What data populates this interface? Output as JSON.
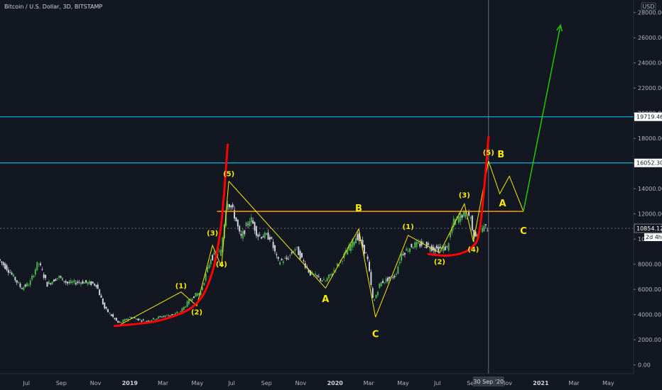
{
  "header": {
    "symbol": "Bitcoin / U.S. Dollar, 3D, BITSTAMP"
  },
  "currency_badge": "USD",
  "colors": {
    "background": "#131722",
    "up_candle": "#4caf50",
    "down_candle": "#d1d4dc",
    "wave_line": "#f5ea00",
    "cup_curve": "#ff0000",
    "resistance": "#00bcd4",
    "neckline": "#ff9800",
    "projection": "#1fc800"
  },
  "chart_data": {
    "type": "candlestick",
    "title": "Bitcoin / U.S. Dollar, 3D, BITSTAMP",
    "currency": "USD",
    "y_range": [
      -700,
      29000
    ],
    "x_range": [
      "2018-05-15",
      "2021-06-15"
    ],
    "price_ticks": [
      "28000.00",
      "26000.00",
      "24000.00",
      "22000.00",
      "20000.00",
      "18000.00",
      "16000.00",
      "14000.00",
      "12000.00",
      "10000.00",
      "8000.00",
      "6000.00",
      "4000.00",
      "2000.00",
      "0.00"
    ],
    "time_ticks": [
      "Jul",
      "Sep",
      "Nov",
      "2019",
      "Mar",
      "May",
      "Jul",
      "Sep",
      "Nov",
      "2020",
      "Mar",
      "May",
      "Jul",
      "Sep",
      "Nov",
      "2021",
      "Mar",
      "May"
    ],
    "cursor": {
      "date_label": "30 Sep '20",
      "price_label": "10854.12",
      "countdown_label": "2d 4h"
    },
    "price_series": [
      [
        "2018-05-15",
        8400
      ],
      [
        "2018-06-01",
        7600
      ],
      [
        "2018-06-25",
        6100
      ],
      [
        "2018-07-10",
        6500
      ],
      [
        "2018-07-25",
        8200
      ],
      [
        "2018-08-10",
        6400
      ],
      [
        "2018-08-30",
        7000
      ],
      [
        "2018-09-15",
        6500
      ],
      [
        "2018-10-10",
        6600
      ],
      [
        "2018-11-05",
        6400
      ],
      [
        "2018-11-20",
        4500
      ],
      [
        "2018-12-15",
        3300
      ],
      [
        "2019-01-05",
        3800
      ],
      [
        "2019-02-01",
        3450
      ],
      [
        "2019-03-01",
        3850
      ],
      [
        "2019-04-01",
        4100
      ],
      [
        "2019-04-25",
        5400
      ],
      [
        "2019-05-10",
        5800
      ],
      [
        "2019-05-28",
        8500
      ],
      [
        "2019-06-15",
        9000
      ],
      [
        "2019-06-26",
        13200
      ],
      [
        "2019-07-10",
        11800
      ],
      [
        "2019-07-20",
        10000
      ],
      [
        "2019-08-06",
        11700
      ],
      [
        "2019-08-20",
        10300
      ],
      [
        "2019-09-10",
        10200
      ],
      [
        "2019-09-24",
        8200
      ],
      [
        "2019-10-10",
        8400
      ],
      [
        "2019-10-26",
        9300
      ],
      [
        "2019-11-20",
        7300
      ],
      [
        "2019-12-17",
        6600
      ],
      [
        "2020-01-10",
        8000
      ],
      [
        "2020-02-12",
        10300
      ],
      [
        "2020-03-01",
        8600
      ],
      [
        "2020-03-12",
        4900
      ],
      [
        "2020-03-24",
        6500
      ],
      [
        "2020-04-20",
        7100
      ],
      [
        "2020-05-01",
        8800
      ],
      [
        "2020-05-20",
        9500
      ],
      [
        "2020-06-10",
        9600
      ],
      [
        "2020-07-01",
        9200
      ],
      [
        "2020-07-21",
        9300
      ],
      [
        "2020-08-01",
        11300
      ],
      [
        "2020-08-18",
        12000
      ],
      [
        "2020-09-01",
        11800
      ],
      [
        "2020-09-05",
        10200
      ],
      [
        "2020-09-20",
        10900
      ],
      [
        "2020-09-30",
        10854
      ]
    ],
    "horizontal_lines": [
      {
        "name": "resistance-upper",
        "value": 19719.46,
        "label": "19719.46"
      },
      {
        "name": "resistance-lower",
        "value": 16052.3,
        "label": "16052.30"
      },
      {
        "name": "neckline",
        "value": 12200,
        "from": "2019-06-05",
        "to": "2020-12-01"
      }
    ],
    "wave_paths": [
      {
        "name": "impulse-2019",
        "points": [
          [
            "2018-12-15",
            3200
          ],
          [
            "2019-04-02",
            5800
          ],
          [
            "2019-04-30",
            4700
          ],
          [
            "2019-05-28",
            9500
          ],
          [
            "2019-06-13",
            7800
          ],
          [
            "2019-06-26",
            14600
          ]
        ]
      },
      {
        "name": "abc-correction",
        "points": [
          [
            "2019-06-26",
            14600
          ],
          [
            "2019-12-15",
            6100
          ],
          [
            "2020-02-12",
            10800
          ],
          [
            "2020-03-13",
            3800
          ]
        ]
      },
      {
        "name": "impulse-2020",
        "points": [
          [
            "2020-03-13",
            3800
          ],
          [
            "2020-05-10",
            10300
          ],
          [
            "2020-07-05",
            8900
          ],
          [
            "2020-08-18",
            12800
          ],
          [
            "2020-09-03",
            9800
          ],
          [
            "2020-09-30",
            16200
          ]
        ]
      },
      {
        "name": "projected-abc",
        "points": [
          [
            "2020-09-30",
            16200
          ],
          [
            "2020-10-20",
            13600
          ],
          [
            "2020-11-06",
            15000
          ],
          [
            "2020-12-01",
            12200
          ]
        ]
      }
    ],
    "projection_arrow": {
      "from": [
        "2020-12-01",
        12200
      ],
      "to": [
        "2021-02-05",
        27000
      ]
    },
    "cup_curves": [
      {
        "name": "cup-2019",
        "points": [
          [
            "2018-12-05",
            3100
          ],
          [
            "2019-02-20",
            3500
          ],
          [
            "2019-04-25",
            4700
          ],
          [
            "2019-05-25",
            7000
          ],
          [
            "2019-06-12",
            11000
          ],
          [
            "2019-06-24",
            17500
          ]
        ]
      },
      {
        "name": "cup-2020",
        "points": [
          [
            "2020-06-15",
            8800
          ],
          [
            "2020-07-25",
            8700
          ],
          [
            "2020-08-30",
            9300
          ],
          [
            "2020-09-15",
            11000
          ],
          [
            "2020-09-30",
            18100
          ]
        ]
      }
    ],
    "wave_labels": [
      {
        "text": "(1)",
        "at": [
          "2019-04-02",
          6100
        ],
        "size": "small"
      },
      {
        "text": "(2)",
        "at": [
          "2019-04-30",
          4000
        ],
        "size": "small"
      },
      {
        "text": "(3)",
        "at": [
          "2019-05-28",
          10300
        ],
        "size": "small"
      },
      {
        "text": "(4)",
        "at": [
          "2019-06-13",
          7800
        ],
        "size": "small"
      },
      {
        "text": "(5)",
        "at": [
          "2019-06-26",
          15000
        ],
        "size": "small"
      },
      {
        "text": "A",
        "at": [
          "2019-12-15",
          5000
        ],
        "size": "big"
      },
      {
        "text": "B",
        "at": [
          "2020-02-12",
          12200
        ],
        "size": "big"
      },
      {
        "text": "C",
        "at": [
          "2020-03-13",
          2200
        ],
        "size": "big"
      },
      {
        "text": "(1)",
        "at": [
          "2020-05-10",
          10800
        ],
        "size": "small"
      },
      {
        "text": "(2)",
        "at": [
          "2020-07-05",
          8000
        ],
        "size": "small"
      },
      {
        "text": "(3)",
        "at": [
          "2020-08-18",
          13300
        ],
        "size": "small"
      },
      {
        "text": "(4)",
        "at": [
          "2020-09-03",
          9000
        ],
        "size": "small"
      },
      {
        "text": "(5)",
        "at": [
          "2020-09-30",
          16700
        ],
        "size": "small"
      },
      {
        "text": "B",
        "at": [
          "2020-10-22",
          16500
        ],
        "size": "big"
      },
      {
        "text": "A",
        "at": [
          "2020-10-25",
          12600
        ],
        "size": "big"
      },
      {
        "text": "C",
        "at": [
          "2020-12-01",
          10400
        ],
        "size": "big"
      }
    ]
  }
}
